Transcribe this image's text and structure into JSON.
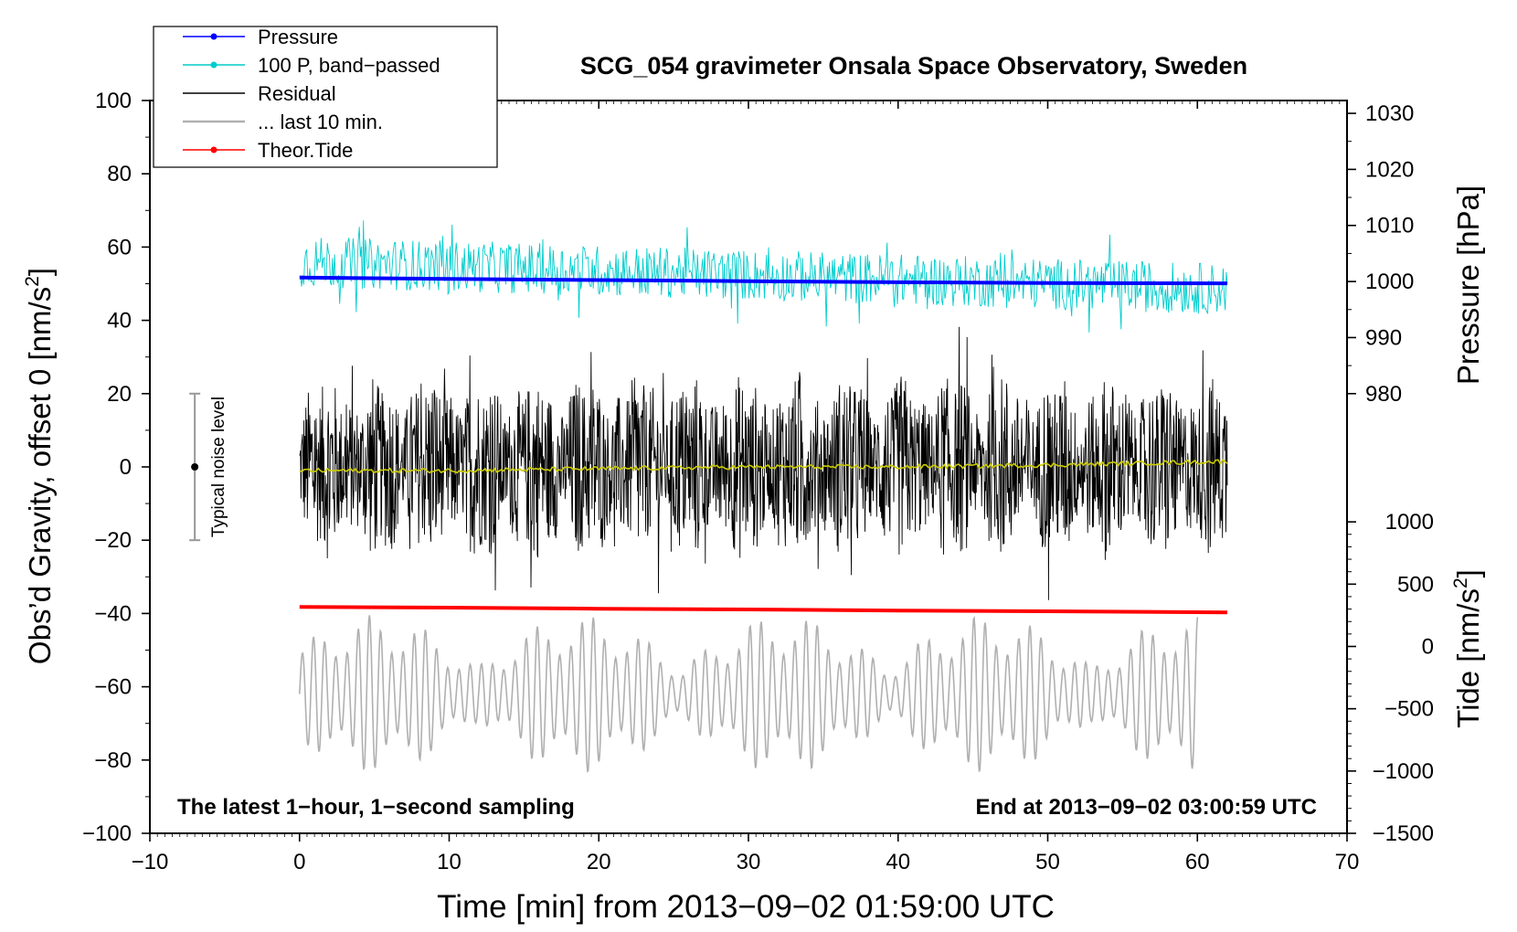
{
  "chart_data": {
    "type": "line",
    "title": "SCG_054 gravimeter Onsala Space Observatory, Sweden",
    "xlabel": "Time [min] from 2013−09−02 01:59:00 UTC",
    "ylabel_left_main": "Obs’d Gravity, offset 0 [nm/s",
    "ylabel_left_sup": "2",
    "ylabel_left_tail": "]",
    "ylabel_right_pressure": "Pressure [hPa]",
    "ylabel_right_tide_main": "Tide [nm/s",
    "ylabel_right_tide_sup": "2",
    "ylabel_right_tide_tail": "]",
    "xlim": [
      -10,
      70
    ],
    "ylim": [
      -100,
      100
    ],
    "x_ticks": [
      -10,
      0,
      10,
      20,
      30,
      40,
      50,
      60,
      70
    ],
    "x_tick_labels": [
      "−10",
      "0",
      "10",
      "20",
      "30",
      "40",
      "50",
      "60",
      "70"
    ],
    "y_ticks": [
      -100,
      -80,
      -60,
      -40,
      -20,
      0,
      20,
      40,
      60,
      80,
      100
    ],
    "y_tick_labels": [
      "−100",
      "−80",
      "−60",
      "−40",
      "−20",
      "0",
      "20",
      "40",
      "60",
      "80",
      "100"
    ],
    "pressure_axis": {
      "ticks": [
        980,
        990,
        1000,
        1010,
        1020,
        1030
      ],
      "gravity_equiv": [
        20,
        35.3,
        50.6,
        65.9,
        81.2,
        96.5
      ]
    },
    "tide_axis": {
      "ticks": [
        -1500,
        -1000,
        -500,
        0,
        500,
        1000
      ],
      "tick_labels": [
        "−1500",
        "−1000",
        "−500",
        "0",
        "500",
        "1000"
      ],
      "gravity_equiv": [
        -100,
        -83,
        -66,
        -49,
        -32,
        -15
      ]
    },
    "legend": {
      "placement": "top-left",
      "entries": [
        {
          "label": "Pressure",
          "color": "#0000ff",
          "style": "line-dot"
        },
        {
          "label": "100 P, band−passed",
          "color": "#00cccc",
          "style": "line-dot"
        },
        {
          "label": "Residual",
          "color": "#000000",
          "style": "line"
        },
        {
          "label": "... last 10 min.",
          "color": "#b0b0b0",
          "style": "line"
        },
        {
          "label": "Theor.Tide",
          "color": "#ff0000",
          "style": "line-dot"
        }
      ]
    },
    "series": [
      {
        "name": "Pressure",
        "color": "#0000ff",
        "x": [
          0,
          10,
          20,
          30,
          40,
          50,
          62
        ],
        "y": [
          51.7,
          51.3,
          51.0,
          50.7,
          50.4,
          50.2,
          50.1
        ]
      },
      {
        "name": "100 P, band−passed",
        "color": "#00cccc",
        "x_range": [
          0,
          62
        ],
        "mean": 56,
        "amplitude": 7
      },
      {
        "name": "Residual",
        "color": "#000000",
        "x_range": [
          0,
          62
        ],
        "mean": 0,
        "amplitude": 20
      },
      {
        "name": "Residual smoothed",
        "color": "#cccc00",
        "x": [
          0,
          10,
          20,
          30,
          40,
          50,
          62
        ],
        "y": [
          -1,
          -1,
          -0.5,
          0,
          0,
          0.5,
          1.5
        ]
      },
      {
        "name": "... last 10 min.",
        "color": "#b0b0b0",
        "x_range": [
          0,
          60
        ],
        "mean": -62,
        "amplitude": 18
      },
      {
        "name": "Theor.Tide",
        "color": "#ff0000",
        "x": [
          0,
          10,
          20,
          30,
          40,
          50,
          62
        ],
        "y": [
          -38.2,
          -38.4,
          -38.7,
          -38.9,
          -39.2,
          -39.4,
          -39.7
        ]
      }
    ],
    "noise_indicator": {
      "label": "Typical noise level",
      "x": -7,
      "y": 0,
      "range": [
        -20,
        20
      ]
    },
    "annotations": {
      "bottom_left": "The latest 1−hour, 1−second sampling",
      "bottom_right": "End at 2013−09−02 03:00:59 UTC"
    }
  }
}
